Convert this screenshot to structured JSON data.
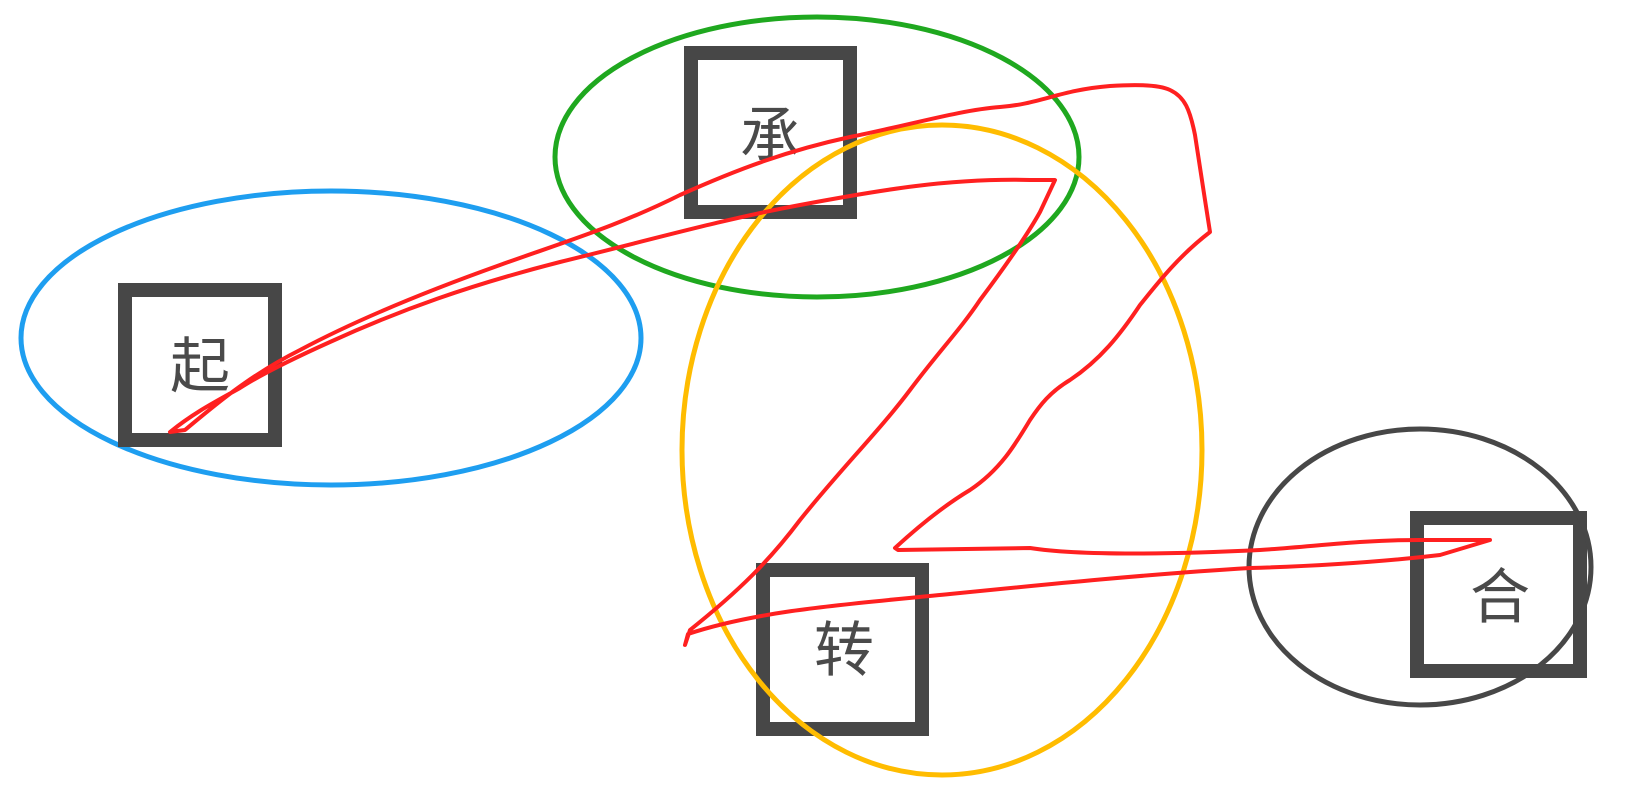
{
  "diagram": {
    "nodes": [
      {
        "id": "qi",
        "label": "起"
      },
      {
        "id": "cheng",
        "label": "承"
      },
      {
        "id": "zhuan",
        "label": "转"
      },
      {
        "id": "he",
        "label": "合"
      }
    ],
    "group_colors": {
      "qi": "#1e9ef0",
      "cheng": "#1fa81f",
      "zhuan": "#ffbc00",
      "he": "#474747"
    },
    "flow_color": "#ff2020",
    "node_border_color": "#474747"
  }
}
